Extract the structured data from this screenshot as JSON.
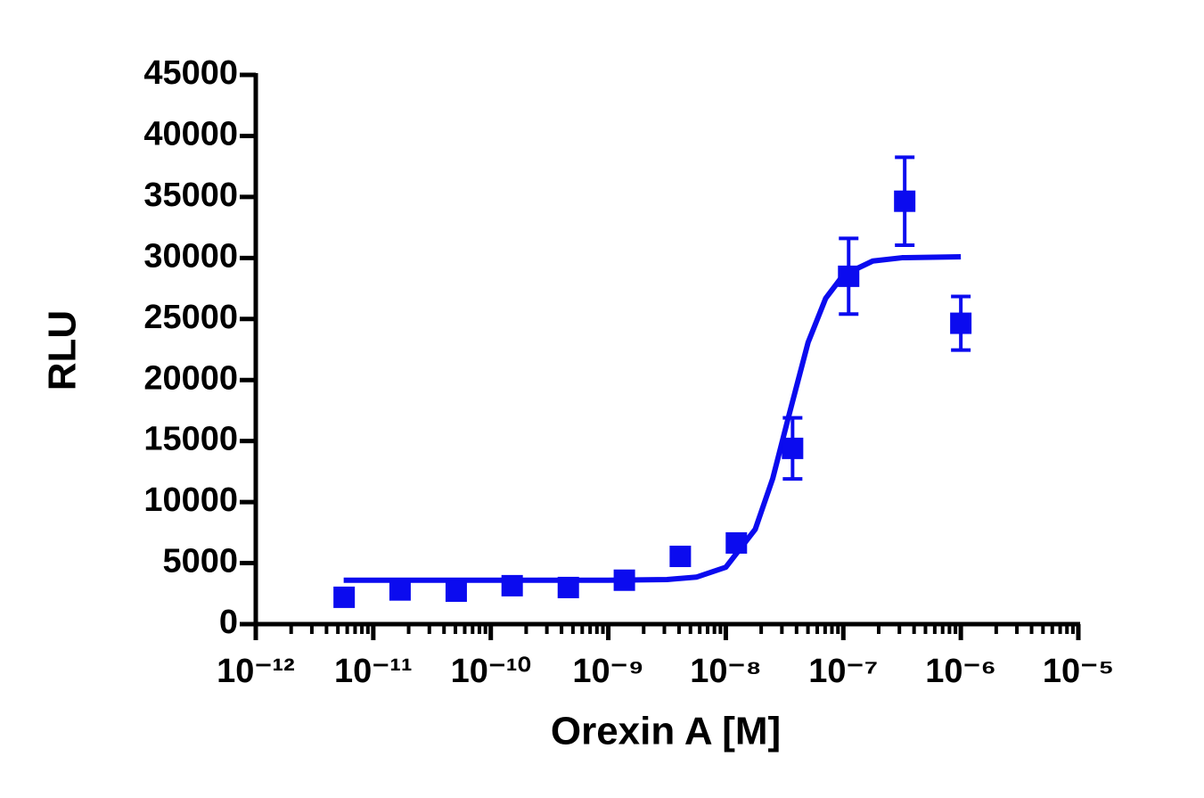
{
  "chart_data": {
    "type": "scatter",
    "x_label": "Orexin A [M]",
    "y_label": "RLU",
    "xscale": "log",
    "xlim": [
      1e-12,
      1e-05
    ],
    "xticks": [
      {
        "value": 1e-12,
        "label": "10⁻¹²"
      },
      {
        "value": 1e-11,
        "label": "10⁻¹¹"
      },
      {
        "value": 1e-10,
        "label": "10⁻¹⁰"
      },
      {
        "value": 1e-09,
        "label": "10⁻⁹"
      },
      {
        "value": 1e-08,
        "label": "10⁻⁸"
      },
      {
        "value": 1e-07,
        "label": "10⁻⁷"
      },
      {
        "value": 1e-06,
        "label": "10⁻⁶"
      },
      {
        "value": 1e-05,
        "label": "10⁻⁵"
      }
    ],
    "minor_ticks": true,
    "ylim": [
      0,
      45000
    ],
    "yticks": [
      0,
      5000,
      10000,
      15000,
      20000,
      25000,
      30000,
      35000,
      40000,
      45000
    ],
    "series": [
      {
        "mode": "markers",
        "color": "#0b0bef",
        "x": [
          5.65e-12,
          1.69e-11,
          5.08e-11,
          1.52e-10,
          4.57e-10,
          1.37e-09,
          4.1e-09,
          1.23e-08,
          3.7e-08,
          1.11e-07,
          3.33e-07,
          1e-06
        ],
        "values": [
          2200,
          2800,
          2700,
          3150,
          3000,
          3600,
          5550,
          6650,
          14400,
          28500,
          34650,
          24650
        ],
        "errors": [
          null,
          null,
          null,
          null,
          null,
          null,
          null,
          null,
          2500,
          3100,
          3600,
          2200
        ]
      },
      {
        "mode": "line",
        "color": "#0b0bef",
        "x": [
          5.6e-12,
          1e-09,
          3.16e-09,
          5.62e-09,
          1e-08,
          1.78e-08,
          2.51e-08,
          3.39e-08,
          5.01e-08,
          7.08e-08,
          1e-07,
          1.78e-07,
          3.16e-07,
          1e-06
        ],
        "values": [
          3600,
          3600,
          3655,
          3850,
          4660,
          7770,
          11940,
          16850,
          23070,
          26700,
          28600,
          29750,
          30020,
          30100
        ]
      }
    ]
  }
}
